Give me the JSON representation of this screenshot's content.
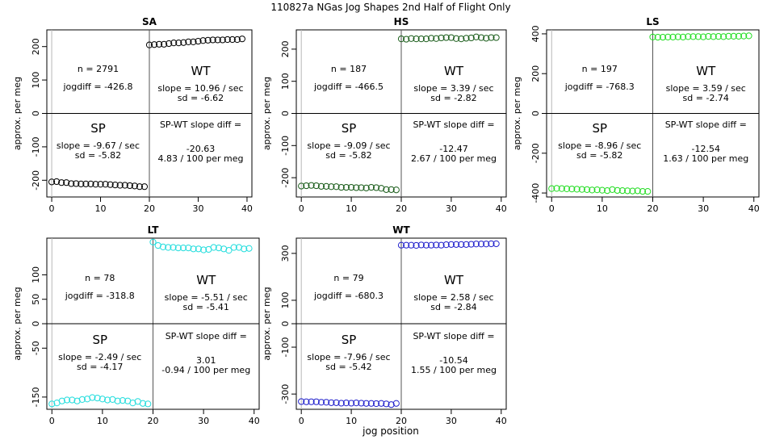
{
  "figure": {
    "title": "110827a   NGas Jog Shapes 2nd Half of Flight Only",
    "xlabel": "jog position"
  },
  "chart_data": [
    {
      "type": "scatter",
      "title": "SA",
      "ylabel": "approx. per meg",
      "xlim": [
        -1,
        41
      ],
      "ylim": [
        -250,
        250
      ],
      "xticks": [
        "0",
        "10",
        "20",
        "30",
        "40"
      ],
      "yticks": [
        "-200",
        "-100",
        "0",
        "100",
        "200"
      ],
      "color": "#000000",
      "x": [
        0,
        1,
        2,
        3,
        4,
        5,
        6,
        7,
        8,
        9,
        10,
        11,
        12,
        13,
        14,
        15,
        16,
        17,
        18,
        19,
        20,
        21,
        22,
        23,
        24,
        25,
        26,
        27,
        28,
        29,
        30,
        31,
        32,
        33,
        34,
        35,
        36,
        37,
        38,
        39
      ],
      "y": [
        -205,
        -204,
        -207,
        -207,
        -210,
        -210,
        -211,
        -211,
        -211,
        -212,
        -212,
        -212,
        -213,
        -214,
        -215,
        -215,
        -216,
        -217,
        -219,
        -219,
        205,
        206,
        207,
        207,
        209,
        211,
        211,
        212,
        214,
        214,
        216,
        218,
        219,
        220,
        220,
        220,
        221,
        221,
        221,
        223
      ],
      "annotations": {
        "n": "n = 2791",
        "jogdiff": "jogdiff = -426.8",
        "wt_label": "WT",
        "wt_slope": "slope = 10.96 / sec",
        "wt_sd": "sd = -6.62",
        "sp_label": "SP",
        "sp_slope": "slope = -9.67 / sec",
        "sp_sd": "sd = -5.82",
        "diff_label": "SP-WT slope diff =",
        "diff_value": "-20.63",
        "diff_per": "4.83 / 100 per meg"
      }
    },
    {
      "type": "scatter",
      "title": "HS",
      "ylabel": "approx. per meg",
      "xlim": [
        -1,
        41
      ],
      "ylim": [
        -260,
        260
      ],
      "xticks": [
        "0",
        "10",
        "20",
        "30",
        "40"
      ],
      "yticks": [
        "-200",
        "-100",
        "0",
        "100",
        "200"
      ],
      "color": "#1a5c1a",
      "x": [
        0,
        1,
        2,
        3,
        4,
        5,
        6,
        7,
        8,
        9,
        10,
        11,
        12,
        13,
        14,
        15,
        16,
        17,
        18,
        19,
        20,
        21,
        22,
        23,
        24,
        25,
        26,
        27,
        28,
        29,
        30,
        31,
        32,
        33,
        34,
        35,
        36,
        37,
        38,
        39
      ],
      "y": [
        -226,
        -225,
        -224,
        -225,
        -227,
        -227,
        -228,
        -228,
        -230,
        -230,
        -230,
        -231,
        -231,
        -232,
        -230,
        -231,
        -233,
        -237,
        -237,
        -238,
        232,
        231,
        233,
        232,
        232,
        232,
        234,
        233,
        235,
        236,
        236,
        233,
        232,
        234,
        235,
        238,
        236,
        234,
        236,
        236
      ],
      "annotations": {
        "n": "n = 187",
        "jogdiff": "jogdiff = -466.5",
        "wt_label": "WT",
        "wt_slope": "slope = 3.39 / sec",
        "wt_sd": "sd = -2.82",
        "sp_label": "SP",
        "sp_slope": "slope = -9.09 / sec",
        "sp_sd": "sd = -5.82",
        "diff_label": "SP-WT slope diff =",
        "diff_value": "-12.47",
        "diff_per": "2.67 / 100 per meg"
      }
    },
    {
      "type": "scatter",
      "title": "LS",
      "ylabel": "approx. per meg",
      "xlim": [
        -1,
        41
      ],
      "ylim": [
        -420,
        420
      ],
      "xticks": [
        "0",
        "10",
        "20",
        "30",
        "40"
      ],
      "yticks": [
        "-400",
        "-200",
        "0",
        "200",
        "400"
      ],
      "color": "#22dd22",
      "x": [
        0,
        1,
        2,
        3,
        4,
        5,
        6,
        7,
        8,
        9,
        10,
        11,
        12,
        13,
        14,
        15,
        16,
        17,
        18,
        19,
        20,
        21,
        22,
        23,
        24,
        25,
        26,
        27,
        28,
        29,
        30,
        31,
        32,
        33,
        34,
        35,
        36,
        37,
        38,
        39
      ],
      "y": [
        -378,
        -377,
        -378,
        -379,
        -380,
        -381,
        -382,
        -383,
        -385,
        -384,
        -386,
        -388,
        -383,
        -387,
        -388,
        -389,
        -390,
        -389,
        -392,
        -392,
        384,
        383,
        383,
        384,
        384,
        385,
        384,
        386,
        386,
        386,
        385,
        387,
        386,
        387,
        386,
        388,
        388,
        388,
        389,
        390
      ],
      "annotations": {
        "n": "n = 197",
        "jogdiff": "jogdiff = -768.3",
        "wt_label": "WT",
        "wt_slope": "slope = 3.59 / sec",
        "wt_sd": "sd = -2.74",
        "sp_label": "SP",
        "sp_slope": "slope = -8.96 / sec",
        "sp_sd": "sd = -5.82",
        "diff_label": "SP-WT slope diff =",
        "diff_value": "-12.54",
        "diff_per": "1.63 / 100 per meg"
      }
    },
    {
      "type": "scatter",
      "title": "LT",
      "ylabel": "approx. per meg",
      "xlim": [
        -1,
        41
      ],
      "ylim": [
        -175,
        175
      ],
      "xticks": [
        "0",
        "10",
        "20",
        "30",
        "40"
      ],
      "yticks": [
        "-150",
        "-50",
        "0",
        "50",
        "100"
      ],
      "color": "#22dddd",
      "x": [
        0,
        1,
        2,
        3,
        4,
        5,
        6,
        7,
        8,
        9,
        10,
        11,
        12,
        13,
        14,
        15,
        16,
        17,
        18,
        19,
        20,
        21,
        22,
        23,
        24,
        25,
        26,
        27,
        28,
        29,
        30,
        31,
        32,
        33,
        34,
        35,
        36,
        37,
        38,
        39
      ],
      "y": [
        -164,
        -162,
        -158,
        -156,
        -156,
        -158,
        -155,
        -154,
        -151,
        -152,
        -154,
        -156,
        -155,
        -158,
        -157,
        -158,
        -162,
        -159,
        -163,
        -164,
        167,
        160,
        157,
        156,
        156,
        155,
        155,
        155,
        153,
        153,
        151,
        152,
        156,
        155,
        153,
        150,
        156,
        156,
        153,
        154
      ],
      "annotations": {
        "n": "n = 78",
        "jogdiff": "jogdiff = -318.8",
        "wt_label": "WT",
        "wt_slope": "slope = -5.51 / sec",
        "wt_sd": "sd = -5.41",
        "sp_label": "SP",
        "sp_slope": "slope = -2.49 / sec",
        "sp_sd": "sd = -4.17",
        "diff_label": "SP-WT slope diff =",
        "diff_value": "3.01",
        "diff_per": "-0.94 / 100 per meg"
      }
    },
    {
      "type": "scatter",
      "title": "WT",
      "ylabel": "approx. per meg",
      "xlim": [
        -1,
        41
      ],
      "ylim": [
        -365,
        365
      ],
      "xticks": [
        "0",
        "10",
        "20",
        "30",
        "40"
      ],
      "yticks": [
        "-300",
        "-100",
        "0",
        "100",
        "300"
      ],
      "color": "#2222cc",
      "x": [
        0,
        1,
        2,
        3,
        4,
        5,
        6,
        7,
        8,
        9,
        10,
        11,
        12,
        13,
        14,
        15,
        16,
        17,
        18,
        19,
        20,
        21,
        22,
        23,
        24,
        25,
        26,
        27,
        28,
        29,
        30,
        31,
        32,
        33,
        34,
        35,
        36,
        37,
        38,
        39
      ],
      "y": [
        -332,
        -333,
        -333,
        -333,
        -335,
        -335,
        -337,
        -337,
        -339,
        -338,
        -339,
        -338,
        -339,
        -340,
        -340,
        -341,
        -340,
        -342,
        -345,
        -340,
        335,
        335,
        335,
        334,
        336,
        335,
        335,
        336,
        335,
        337,
        338,
        338,
        338,
        338,
        339,
        340,
        340,
        340,
        341,
        341
      ],
      "annotations": {
        "n": "n = 79",
        "jogdiff": "jogdiff = -680.3",
        "wt_label": "WT",
        "wt_slope": "slope = 2.58 / sec",
        "wt_sd": "sd = -2.84",
        "sp_label": "SP",
        "sp_slope": "slope = -7.96 / sec",
        "sp_sd": "sd = -5.42",
        "diff_label": "SP-WT slope diff =",
        "diff_value": "-10.54",
        "diff_per": "1.55 / 100 per meg"
      }
    }
  ]
}
